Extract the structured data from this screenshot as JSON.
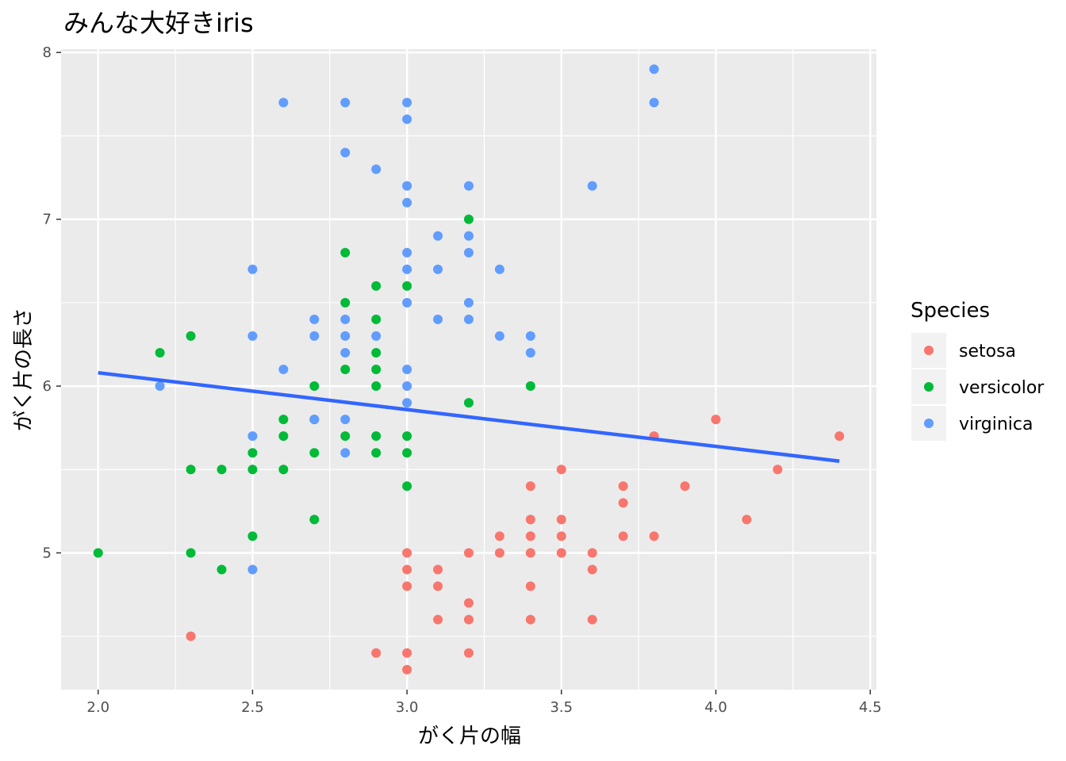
{
  "chart_data": {
    "type": "scatter",
    "title": "みんな大好きiris",
    "xlabel": "がく片の幅",
    "ylabel": "がく片の長さ",
    "xlim": [
      1.88,
      4.52
    ],
    "ylim": [
      4.18,
      8.02
    ],
    "x_ticks": [
      "2.0",
      "2.5",
      "3.0",
      "3.5",
      "4.0",
      "4.5"
    ],
    "x_tick_values": [
      2.0,
      2.5,
      3.0,
      3.5,
      4.0,
      4.5
    ],
    "y_ticks": [
      "5",
      "6",
      "7",
      "8"
    ],
    "y_tick_values": [
      5,
      6,
      7,
      8
    ],
    "grid": true,
    "panel_background": "#ebebeb",
    "legend": {
      "title": "Species",
      "position": "right"
    },
    "series": [
      {
        "name": "setosa",
        "color": "#F8766D",
        "points": [
          [
            2.3,
            4.5
          ],
          [
            2.9,
            4.4
          ],
          [
            3.0,
            4.4
          ],
          [
            3.0,
            4.3
          ],
          [
            3.2,
            4.4
          ],
          [
            3.0,
            5.0
          ],
          [
            3.0,
            4.9
          ],
          [
            3.0,
            4.8
          ],
          [
            3.1,
            4.9
          ],
          [
            3.1,
            4.8
          ],
          [
            3.1,
            4.6
          ],
          [
            3.2,
            5.0
          ],
          [
            3.2,
            4.7
          ],
          [
            3.2,
            4.6
          ],
          [
            3.3,
            5.1
          ],
          [
            3.3,
            5.0
          ],
          [
            3.4,
            5.4
          ],
          [
            3.4,
            5.2
          ],
          [
            3.4,
            5.1
          ],
          [
            3.4,
            5.0
          ],
          [
            3.4,
            4.8
          ],
          [
            3.4,
            4.6
          ],
          [
            3.5,
            5.5
          ],
          [
            3.5,
            5.2
          ],
          [
            3.5,
            5.1
          ],
          [
            3.5,
            5.0
          ],
          [
            3.6,
            5.0
          ],
          [
            3.6,
            4.9
          ],
          [
            3.6,
            4.6
          ],
          [
            3.7,
            5.4
          ],
          [
            3.7,
            5.3
          ],
          [
            3.7,
            5.1
          ],
          [
            3.8,
            5.7
          ],
          [
            3.8,
            5.1
          ],
          [
            3.9,
            5.4
          ],
          [
            4.0,
            5.8
          ],
          [
            4.1,
            5.2
          ],
          [
            4.2,
            5.5
          ],
          [
            4.4,
            5.7
          ]
        ]
      },
      {
        "name": "versicolor",
        "color": "#00BA38",
        "points": [
          [
            2.0,
            5.0
          ],
          [
            2.2,
            6.2
          ],
          [
            2.3,
            6.3
          ],
          [
            2.3,
            5.5
          ],
          [
            2.3,
            5.0
          ],
          [
            2.4,
            5.5
          ],
          [
            2.4,
            4.9
          ],
          [
            2.5,
            5.6
          ],
          [
            2.5,
            5.5
          ],
          [
            2.5,
            5.1
          ],
          [
            2.6,
            5.8
          ],
          [
            2.6,
            5.7
          ],
          [
            2.6,
            5.5
          ],
          [
            2.7,
            6.0
          ],
          [
            2.7,
            5.8
          ],
          [
            2.7,
            5.6
          ],
          [
            2.7,
            5.2
          ],
          [
            2.8,
            6.8
          ],
          [
            2.8,
            6.5
          ],
          [
            2.8,
            6.1
          ],
          [
            2.8,
            5.7
          ],
          [
            2.9,
            6.6
          ],
          [
            2.9,
            6.4
          ],
          [
            2.9,
            6.2
          ],
          [
            2.9,
            6.1
          ],
          [
            2.9,
            6.0
          ],
          [
            2.9,
            5.7
          ],
          [
            2.9,
            5.6
          ],
          [
            3.0,
            6.6
          ],
          [
            3.0,
            5.7
          ],
          [
            3.0,
            5.6
          ],
          [
            3.0,
            5.4
          ],
          [
            3.2,
            7.0
          ],
          [
            3.2,
            5.9
          ],
          [
            3.4,
            6.0
          ]
        ]
      },
      {
        "name": "virginica",
        "color": "#619CFF",
        "points": [
          [
            2.2,
            6.0
          ],
          [
            2.5,
            6.7
          ],
          [
            2.5,
            6.3
          ],
          [
            2.5,
            5.7
          ],
          [
            2.5,
            4.9
          ],
          [
            2.6,
            7.7
          ],
          [
            2.6,
            6.1
          ],
          [
            2.7,
            6.4
          ],
          [
            2.7,
            6.3
          ],
          [
            2.7,
            5.8
          ],
          [
            2.8,
            7.7
          ],
          [
            2.8,
            7.4
          ],
          [
            2.8,
            6.4
          ],
          [
            2.8,
            6.3
          ],
          [
            2.8,
            6.2
          ],
          [
            2.8,
            5.8
          ],
          [
            2.8,
            5.6
          ],
          [
            2.9,
            7.3
          ],
          [
            2.9,
            6.3
          ],
          [
            3.0,
            7.7
          ],
          [
            3.0,
            7.6
          ],
          [
            3.0,
            7.2
          ],
          [
            3.0,
            7.1
          ],
          [
            3.0,
            6.8
          ],
          [
            3.0,
            6.7
          ],
          [
            3.0,
            6.5
          ],
          [
            3.0,
            6.1
          ],
          [
            3.0,
            6.0
          ],
          [
            3.0,
            5.9
          ],
          [
            3.1,
            6.9
          ],
          [
            3.1,
            6.7
          ],
          [
            3.1,
            6.4
          ],
          [
            3.2,
            7.2
          ],
          [
            3.2,
            6.9
          ],
          [
            3.2,
            6.8
          ],
          [
            3.2,
            6.5
          ],
          [
            3.2,
            6.4
          ],
          [
            3.3,
            6.7
          ],
          [
            3.3,
            6.3
          ],
          [
            3.4,
            6.3
          ],
          [
            3.4,
            6.2
          ],
          [
            3.6,
            7.2
          ],
          [
            3.8,
            7.9
          ],
          [
            3.8,
            7.7
          ]
        ]
      }
    ],
    "trend_line": {
      "method": "lm",
      "color": "#3366FF",
      "points": [
        [
          2.0,
          6.08
        ],
        [
          4.4,
          5.55
        ]
      ]
    }
  }
}
